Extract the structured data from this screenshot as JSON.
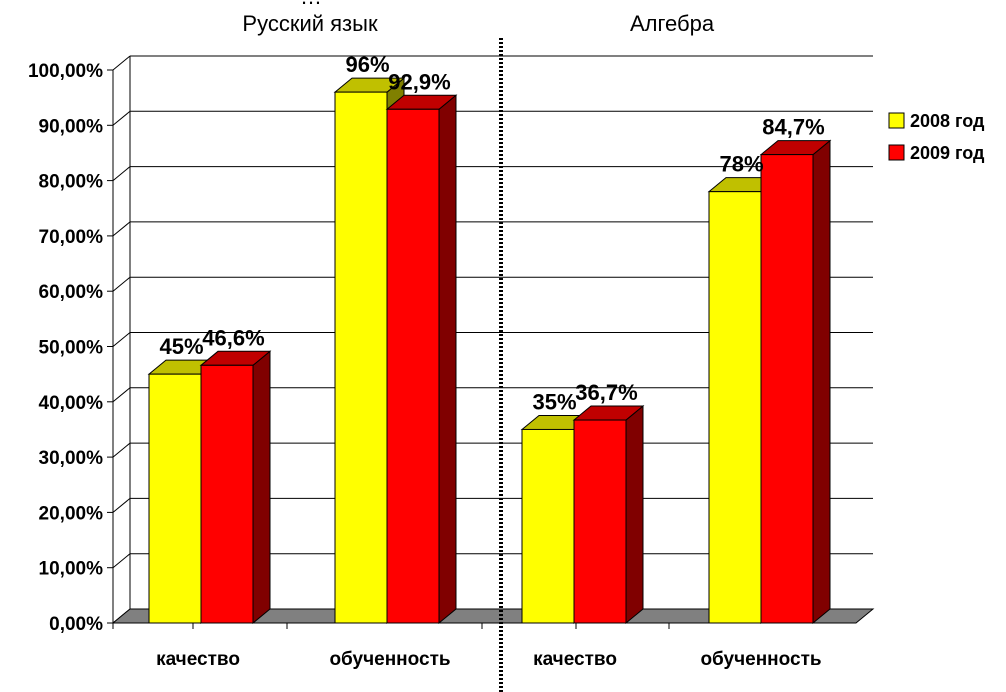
{
  "chart_data": {
    "type": "bar",
    "title_fragment": "…",
    "groups": [
      {
        "title": "Русский язык",
        "categories": [
          "качество",
          "обученность"
        ]
      },
      {
        "title": "Алгебра",
        "categories": [
          "качество",
          "обученность"
        ]
      }
    ],
    "categories": [
      "качество",
      "обученность",
      "качество",
      "обученность"
    ],
    "series": [
      {
        "name": "2008 год",
        "color": "#FFFF00",
        "values": [
          45,
          96,
          35,
          78
        ],
        "labels": [
          "45%",
          "96%",
          "35%",
          "78%"
        ]
      },
      {
        "name": "2009 год",
        "color": "#FF0000",
        "values": [
          46.6,
          92.9,
          36.7,
          84.7
        ],
        "labels": [
          "46,6%",
          "92,9%",
          "36,7%",
          "84,7%"
        ]
      }
    ],
    "y_ticks": [
      "0,00%",
      "10,00%",
      "20,00%",
      "30,00%",
      "40,00%",
      "50,00%",
      "60,00%",
      "70,00%",
      "80,00%",
      "90,00%",
      "100,00%"
    ],
    "ylim": [
      0,
      100
    ],
    "grid": true,
    "legend_position": "right",
    "three_d": true
  }
}
